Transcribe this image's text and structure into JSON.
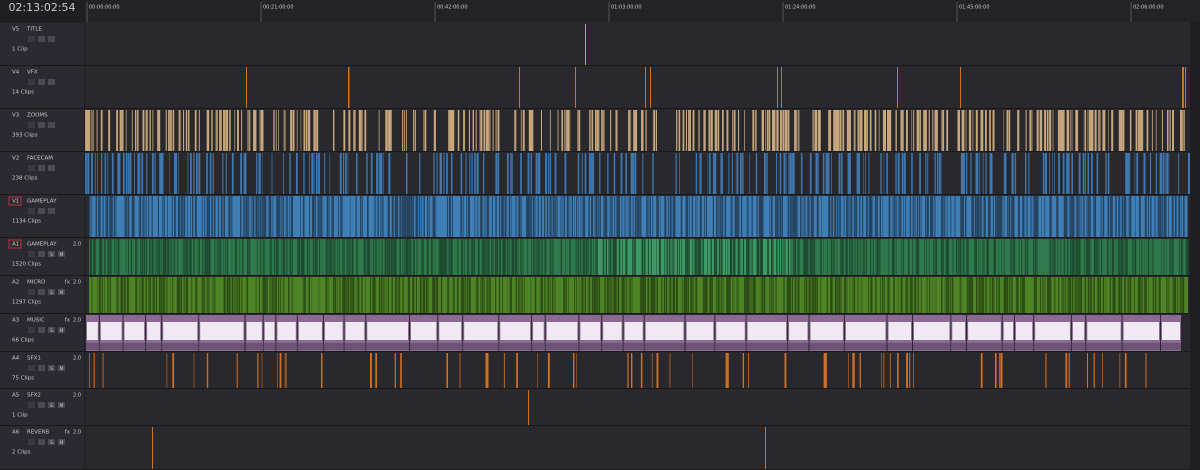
{
  "timecode": "02:13:02:54",
  "ruler": [
    "00:00:00:00",
    "00:21:00:00",
    "00:42:00:00",
    "01:03:00:00",
    "01:24:00:00",
    "01:45:00:00",
    "02:06:00:00"
  ],
  "buttons": {
    "solo": "S",
    "mute": "M"
  },
  "tracks": [
    {
      "id": "V5",
      "name": "TITLE",
      "clips": "1 Clip"
    },
    {
      "id": "V4",
      "name": "VFX",
      "clips": "14 Clips"
    },
    {
      "id": "V3",
      "name": "ZOOMS",
      "clips": "393 Clips"
    },
    {
      "id": "V2",
      "name": "FACECAM",
      "clips": "238 Clips"
    },
    {
      "id": "V1",
      "name": "GAMEPLAY",
      "clips": "1134 Clips"
    },
    {
      "id": "A1",
      "name": "GAMEPLAY",
      "clips": "1520 Clips",
      "channels": "2.0"
    },
    {
      "id": "A2",
      "name": "MICRO",
      "clips": "1297 Clips",
      "fx": "fx",
      "channels": "2.0"
    },
    {
      "id": "A3",
      "name": "MUSIC",
      "clips": "66 Clips",
      "fx": "fx",
      "channels": "2.0"
    },
    {
      "id": "A4",
      "name": "SFX1",
      "clips": "75 Clips",
      "channels": "2.0"
    },
    {
      "id": "A5",
      "name": "SFX2",
      "clips": "1 Clip",
      "channels": "2.0"
    },
    {
      "id": "A6",
      "name": "REVERB",
      "clips": "2 Clips",
      "fx": "fx",
      "channels": "2.0"
    }
  ]
}
